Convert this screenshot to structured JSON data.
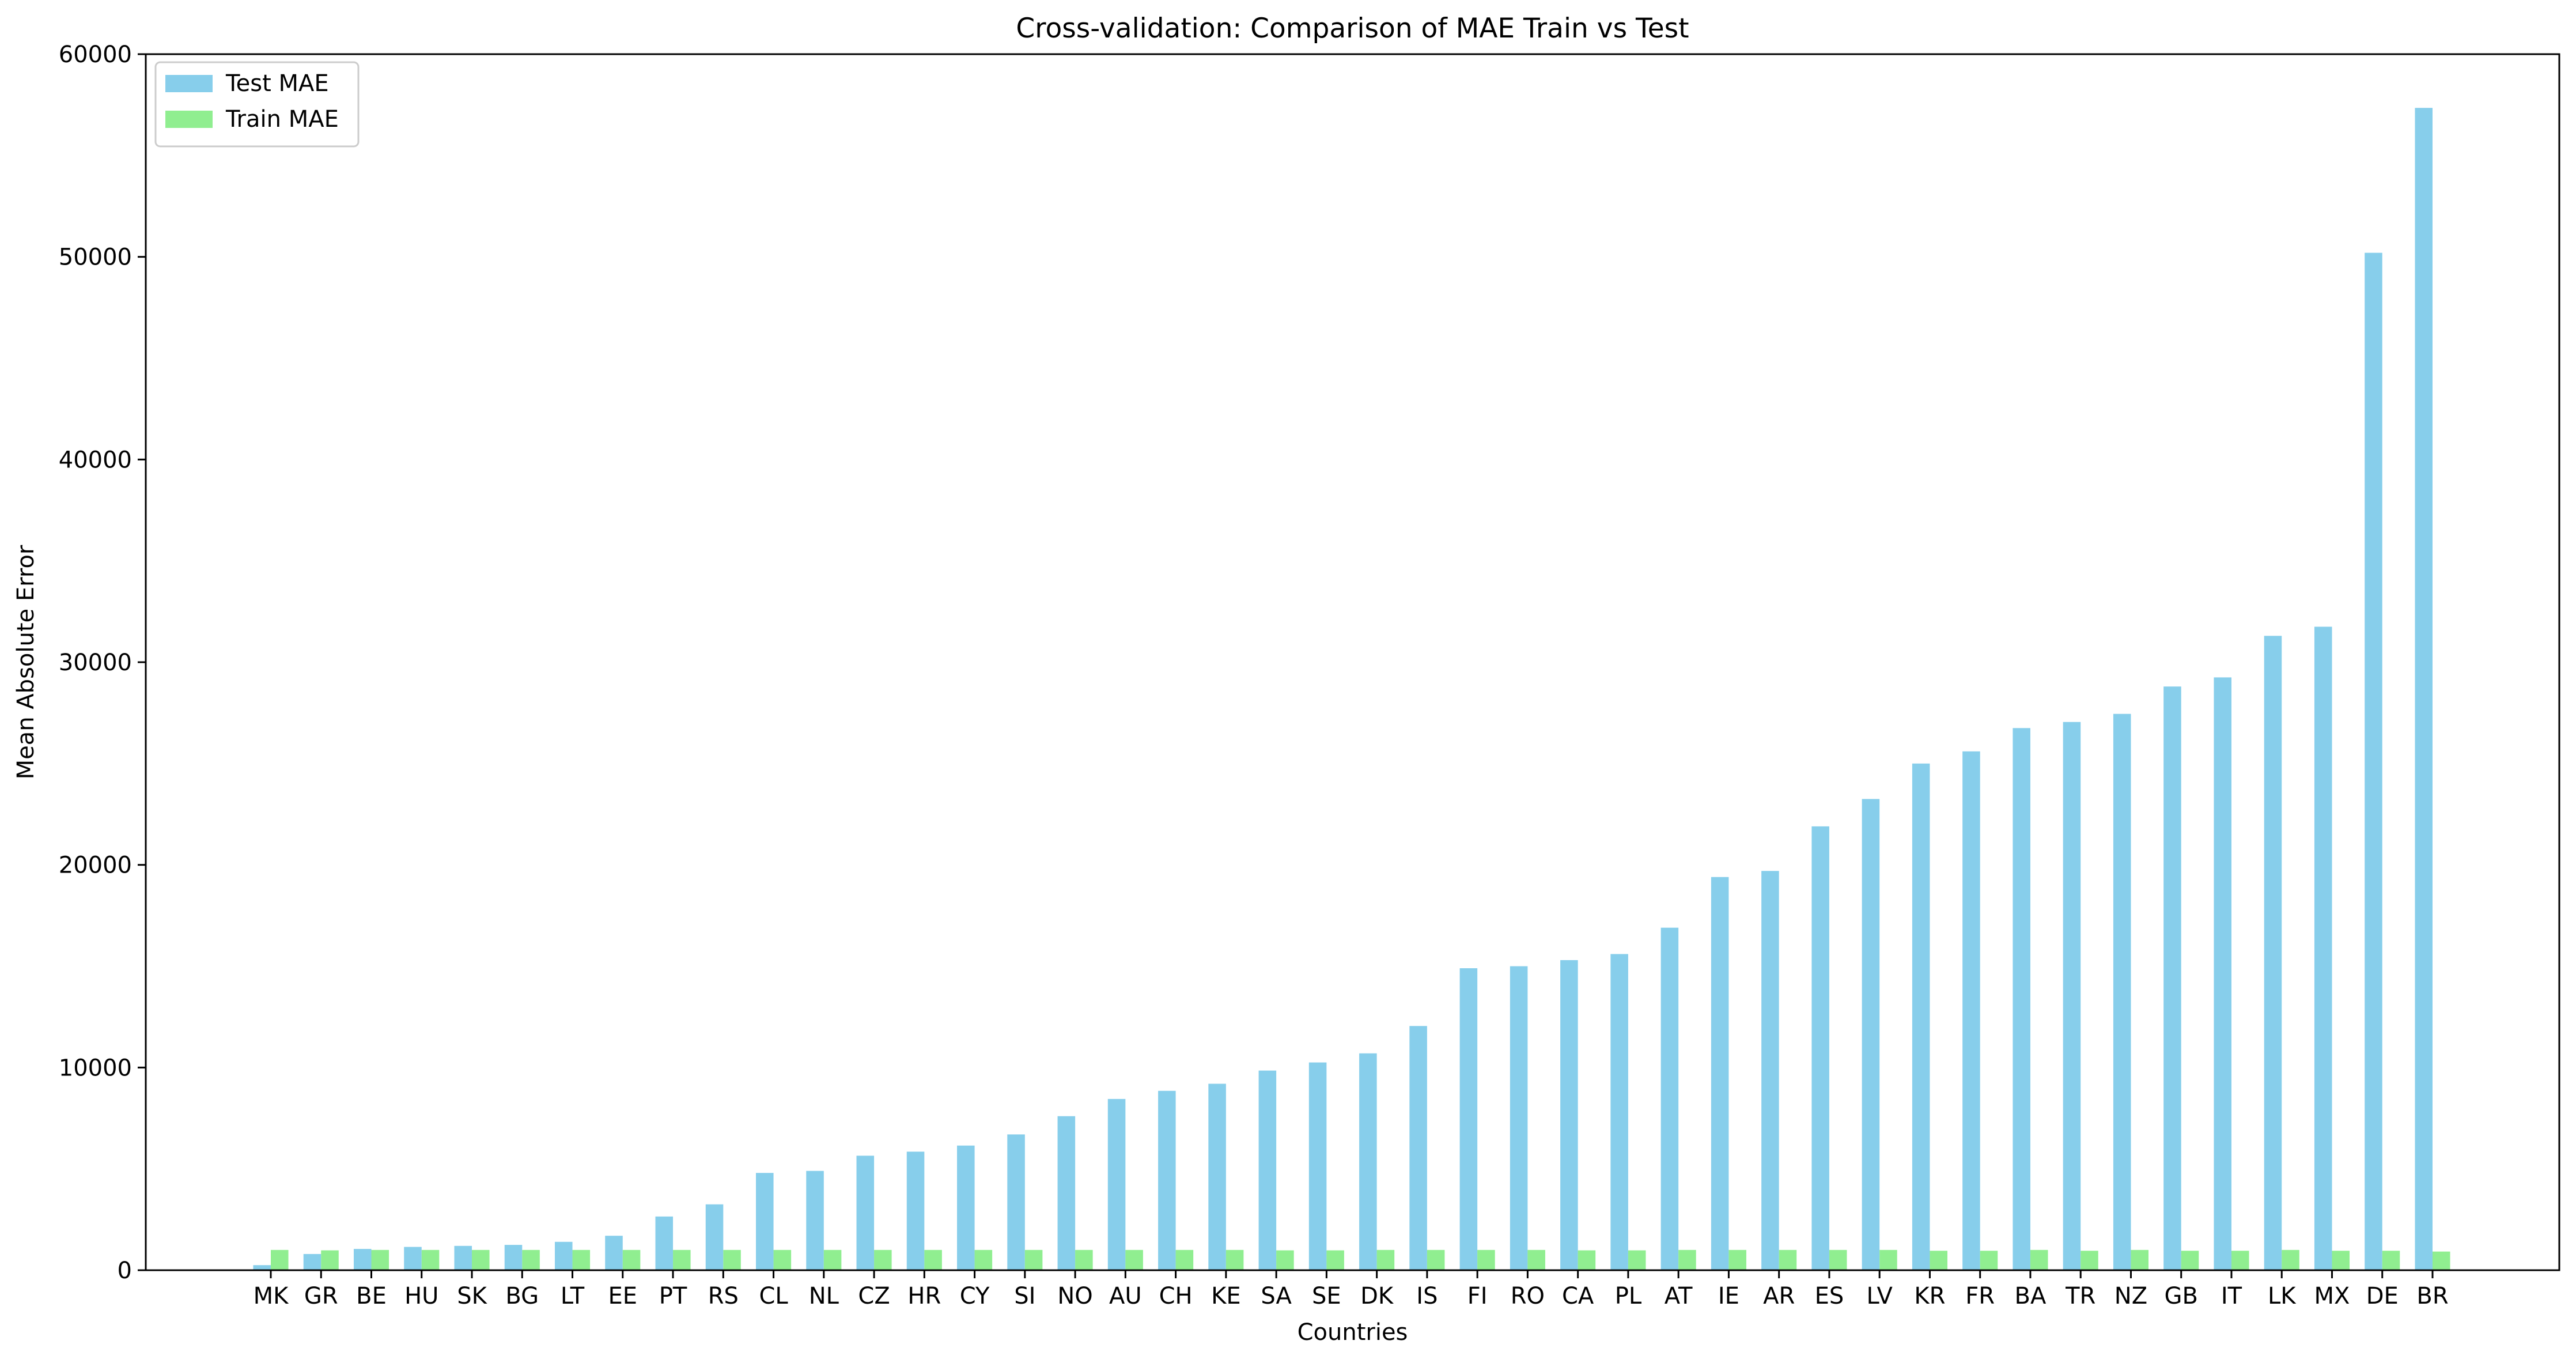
{
  "chart_data": {
    "type": "bar",
    "title": "Cross-validation: Comparison of MAE Train vs Test",
    "xlabel": "Countries",
    "ylabel": "Mean Absolute Error",
    "ylim": [
      0,
      60000
    ],
    "yticks": [
      0,
      10000,
      20000,
      30000,
      40000,
      50000,
      60000
    ],
    "grid": false,
    "legend_position": "top-left",
    "categories": [
      "MK",
      "GR",
      "BE",
      "HU",
      "SK",
      "BG",
      "LT",
      "EE",
      "PT",
      "RS",
      "CL",
      "NL",
      "CZ",
      "HR",
      "CY",
      "SI",
      "NO",
      "AU",
      "CH",
      "KE",
      "SA",
      "SE",
      "DK",
      "IS",
      "FI",
      "RO",
      "CA",
      "PL",
      "AT",
      "IE",
      "AR",
      "ES",
      "LV",
      "KR",
      "FR",
      "BA",
      "TR",
      "NZ",
      "GB",
      "IT",
      "LK",
      "MX",
      "DE",
      "BR"
    ],
    "series": [
      {
        "name": "Test MAE",
        "color": "#87ceeb",
        "values": [
          250,
          800,
          1050,
          1150,
          1200,
          1250,
          1400,
          1700,
          2650,
          3250,
          4800,
          4900,
          5650,
          5850,
          6150,
          6700,
          7600,
          8450,
          8850,
          9200,
          9850,
          10250,
          10700,
          12050,
          14900,
          15000,
          15300,
          15600,
          16900,
          19400,
          19700,
          21900,
          23250,
          25000,
          25600,
          26750,
          27050,
          27450,
          28800,
          29250,
          31300,
          31750,
          50200,
          57350
        ]
      },
      {
        "name": "Train MAE",
        "color": "#90ee90",
        "values": [
          1000,
          980,
          1000,
          1000,
          1000,
          1000,
          1000,
          1000,
          1000,
          1000,
          1000,
          1000,
          1000,
          1000,
          1000,
          1000,
          1000,
          1000,
          1000,
          1000,
          980,
          980,
          1000,
          1000,
          1000,
          1000,
          980,
          980,
          1000,
          1000,
          1000,
          1000,
          1000,
          960,
          960,
          1000,
          960,
          1000,
          960,
          960,
          1000,
          960,
          960,
          920
        ]
      }
    ]
  }
}
